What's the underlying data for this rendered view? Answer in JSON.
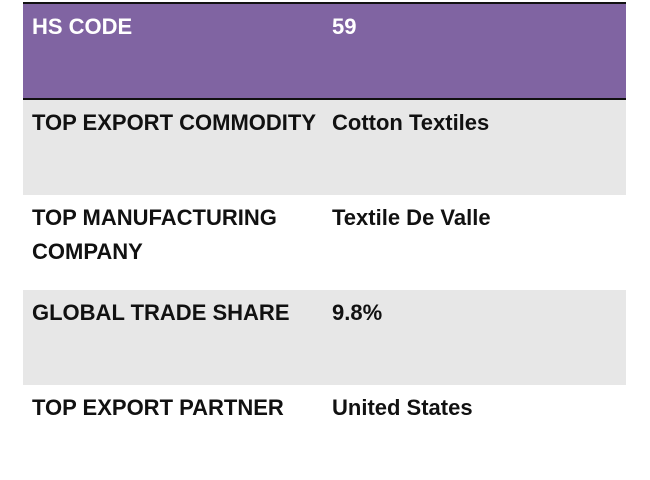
{
  "header": {
    "label": "HS CODE",
    "value": "59"
  },
  "rows": [
    {
      "label": "TOP EXPORT COMMODITY",
      "value": "Cotton Textiles"
    },
    {
      "label": "TOP MANUFACTURING COMPANY",
      "value": "Textile De Valle"
    },
    {
      "label": "GLOBAL TRADE SHARE",
      "value": "9.8%"
    },
    {
      "label": "TOP EXPORT PARTNER",
      "value": "United States"
    }
  ],
  "colors": {
    "header_bg": "#8064A2",
    "alt_row_bg": "#E7E7E7"
  }
}
